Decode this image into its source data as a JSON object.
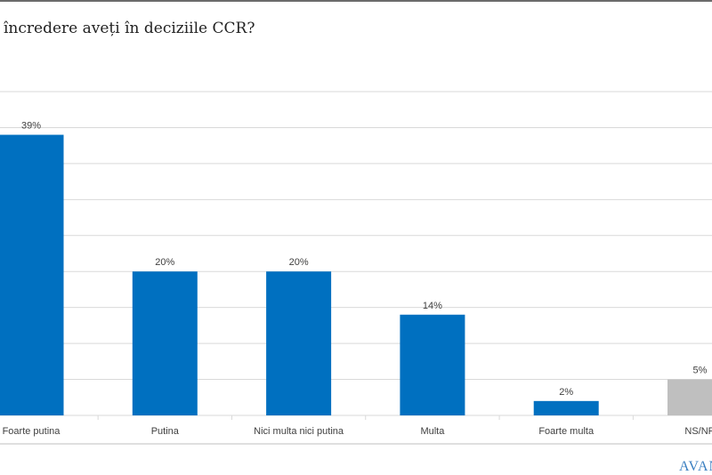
{
  "title": "încredere aveți în deciziile CCR?",
  "logo_text": "AVAN",
  "chart_data": {
    "type": "bar",
    "title": "încredere aveți în deciziile CCR?",
    "categories": [
      "Foarte putina",
      "Putina",
      "Nici multa nici putina",
      "Multa",
      "Foarte multa",
      "NS/NR"
    ],
    "values": [
      39,
      20,
      20,
      14,
      2,
      5
    ],
    "data_labels": [
      "39%",
      "20%",
      "20%",
      "14%",
      "2%",
      "5%"
    ],
    "colors": [
      "#0070c0",
      "#0070c0",
      "#0070c0",
      "#0070c0",
      "#0070c0",
      "#bfbfbf"
    ],
    "ylim": [
      0,
      45
    ],
    "grid": true,
    "xlabel": "",
    "ylabel": ""
  }
}
